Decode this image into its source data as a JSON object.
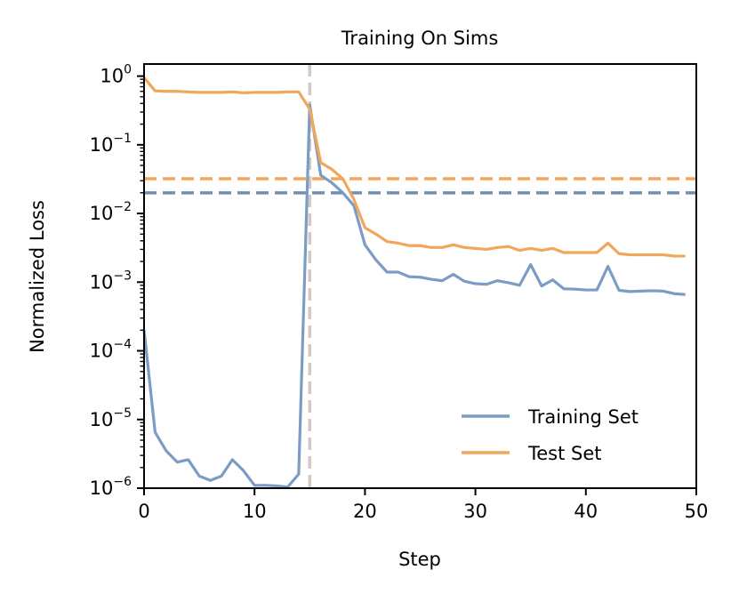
{
  "chart_data": {
    "type": "line",
    "title": "Training On Sims",
    "xlabel": "Step",
    "ylabel": "Normalized Loss",
    "xlim": [
      0,
      50
    ],
    "ylim": [
      1e-06,
      1.5
    ],
    "yscale": "log",
    "x_ticks": [
      {
        "value": 0,
        "label": "0"
      },
      {
        "value": 10,
        "label": "10"
      },
      {
        "value": 20,
        "label": "20"
      },
      {
        "value": 30,
        "label": "30"
      },
      {
        "value": 40,
        "label": "40"
      },
      {
        "value": 50,
        "label": "50"
      }
    ],
    "y_ticks": [
      {
        "value": 1,
        "base": "10",
        "exp": "0"
      },
      {
        "value": 0.1,
        "base": "10",
        "exp": "−1"
      },
      {
        "value": 0.01,
        "base": "10",
        "exp": "−2"
      },
      {
        "value": 0.001,
        "base": "10",
        "exp": "−3"
      },
      {
        "value": 0.0001,
        "base": "10",
        "exp": "−4"
      },
      {
        "value": 1e-05,
        "base": "10",
        "exp": "−5"
      },
      {
        "value": 1e-06,
        "base": "10",
        "exp": "−6"
      }
    ],
    "x": [
      0,
      1,
      2,
      3,
      4,
      5,
      6,
      7,
      8,
      9,
      10,
      11,
      12,
      13,
      14,
      15,
      16,
      17,
      18,
      19,
      20,
      21,
      22,
      23,
      24,
      25,
      26,
      27,
      28,
      29,
      30,
      31,
      32,
      33,
      34,
      35,
      36,
      37,
      38,
      39,
      40,
      41,
      42,
      43,
      44,
      45,
      46,
      47,
      48,
      49
    ],
    "series": [
      {
        "name": "Training Set",
        "color": "#7b9cc4",
        "values": [
          0.0002,
          6.5e-06,
          3.5e-06,
          2.4e-06,
          2.6e-06,
          1.5e-06,
          1.3e-06,
          1.5e-06,
          2.6e-06,
          1.8e-06,
          1.1e-06,
          1.1e-06,
          1.08e-06,
          1.04e-06,
          1.6e-06,
          0.38,
          0.036,
          0.028,
          0.02,
          0.013,
          0.0035,
          0.0021,
          0.0014,
          0.0014,
          0.0012,
          0.00118,
          0.0011,
          0.00105,
          0.0013,
          0.00103,
          0.00095,
          0.00093,
          0.00105,
          0.00098,
          0.0009,
          0.0018,
          0.00088,
          0.00108,
          0.0008,
          0.00079,
          0.00077,
          0.00077,
          0.0017,
          0.00076,
          0.00073,
          0.00074,
          0.00075,
          0.00074,
          0.00068,
          0.00066
        ]
      },
      {
        "name": "Test Set",
        "color": "#f2a65a",
        "values": [
          0.95,
          0.61,
          0.6,
          0.6,
          0.59,
          0.58,
          0.58,
          0.58,
          0.59,
          0.57,
          0.58,
          0.58,
          0.58,
          0.59,
          0.59,
          0.33,
          0.055,
          0.044,
          0.032,
          0.016,
          0.0062,
          0.005,
          0.0039,
          0.0037,
          0.0034,
          0.0034,
          0.0032,
          0.0032,
          0.0035,
          0.0032,
          0.0031,
          0.003,
          0.0032,
          0.0033,
          0.0029,
          0.0031,
          0.0029,
          0.0031,
          0.0027,
          0.0027,
          0.0027,
          0.0027,
          0.0037,
          0.0026,
          0.0025,
          0.0025,
          0.0025,
          0.0025,
          0.0024,
          0.0024
        ]
      }
    ],
    "reference_lines": [
      {
        "orientation": "horizontal",
        "value": 0.032,
        "color": "#f2a65a",
        "style": "dashed",
        "series": "Test Set"
      },
      {
        "orientation": "horizontal",
        "value": 0.02,
        "color": "#6f8fb4",
        "style": "dashed",
        "series": "Training Set"
      },
      {
        "orientation": "vertical",
        "value": 15,
        "color": "#d6c6c4",
        "style": "dashed"
      }
    ],
    "legend": {
      "position": "lower-right",
      "entries": [
        "Training Set",
        "Test Set"
      ]
    },
    "grid": false
  }
}
